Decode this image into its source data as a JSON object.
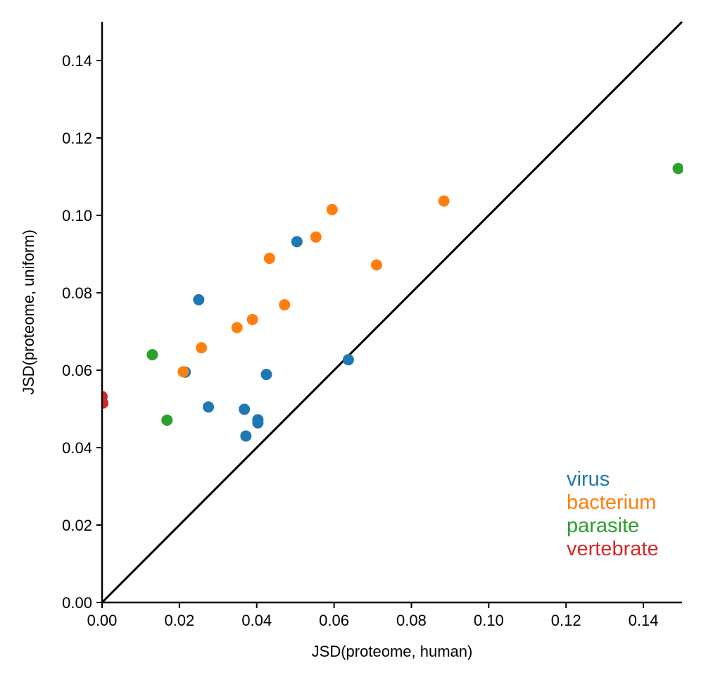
{
  "chart_data": {
    "type": "scatter",
    "xlabel": "JSD(proteome, human)",
    "ylabel": "JSD(proteome, uniform)",
    "xlim": [
      0,
      0.15
    ],
    "ylim": [
      0,
      0.15
    ],
    "xticks": [
      "0.00",
      "0.02",
      "0.04",
      "0.06",
      "0.08",
      "0.10",
      "0.12",
      "0.14"
    ],
    "yticks": [
      "0.00",
      "0.02",
      "0.04",
      "0.06",
      "0.08",
      "0.10",
      "0.12",
      "0.14"
    ],
    "grid": false,
    "reference_line": {
      "from": [
        0,
        0
      ],
      "to": [
        0.15,
        0.15
      ],
      "color": "#000000"
    },
    "legend_placement": "bottom-right",
    "series": [
      {
        "name": "virus",
        "color": "#1f77b4",
        "points": [
          [
            0.0215,
            0.0595
          ],
          [
            0.025,
            0.0782
          ],
          [
            0.0275,
            0.0505
          ],
          [
            0.0368,
            0.0499
          ],
          [
            0.0372,
            0.043
          ],
          [
            0.0403,
            0.0472
          ],
          [
            0.0403,
            0.0464
          ],
          [
            0.0425,
            0.0589
          ],
          [
            0.0504,
            0.0932
          ],
          [
            0.0637,
            0.0627
          ]
        ]
      },
      {
        "name": "bacterium",
        "color": "#ff7f0e",
        "points": [
          [
            0.021,
            0.0596
          ],
          [
            0.0257,
            0.0658
          ],
          [
            0.0349,
            0.071
          ],
          [
            0.0389,
            0.0731
          ],
          [
            0.0433,
            0.0889
          ],
          [
            0.0472,
            0.0769
          ],
          [
            0.0553,
            0.0944
          ],
          [
            0.0595,
            0.1015
          ],
          [
            0.071,
            0.0872
          ],
          [
            0.0884,
            0.1037
          ]
        ]
      },
      {
        "name": "parasite",
        "color": "#2ca02c",
        "points": [
          [
            0.013,
            0.064
          ],
          [
            0.0168,
            0.0471
          ],
          [
            0.149,
            0.1121
          ]
        ]
      },
      {
        "name": "vertebrate",
        "color": "#d62728",
        "points": [
          [
            0.0,
            0.0532
          ],
          [
            0.0002,
            0.0515
          ]
        ]
      }
    ]
  }
}
